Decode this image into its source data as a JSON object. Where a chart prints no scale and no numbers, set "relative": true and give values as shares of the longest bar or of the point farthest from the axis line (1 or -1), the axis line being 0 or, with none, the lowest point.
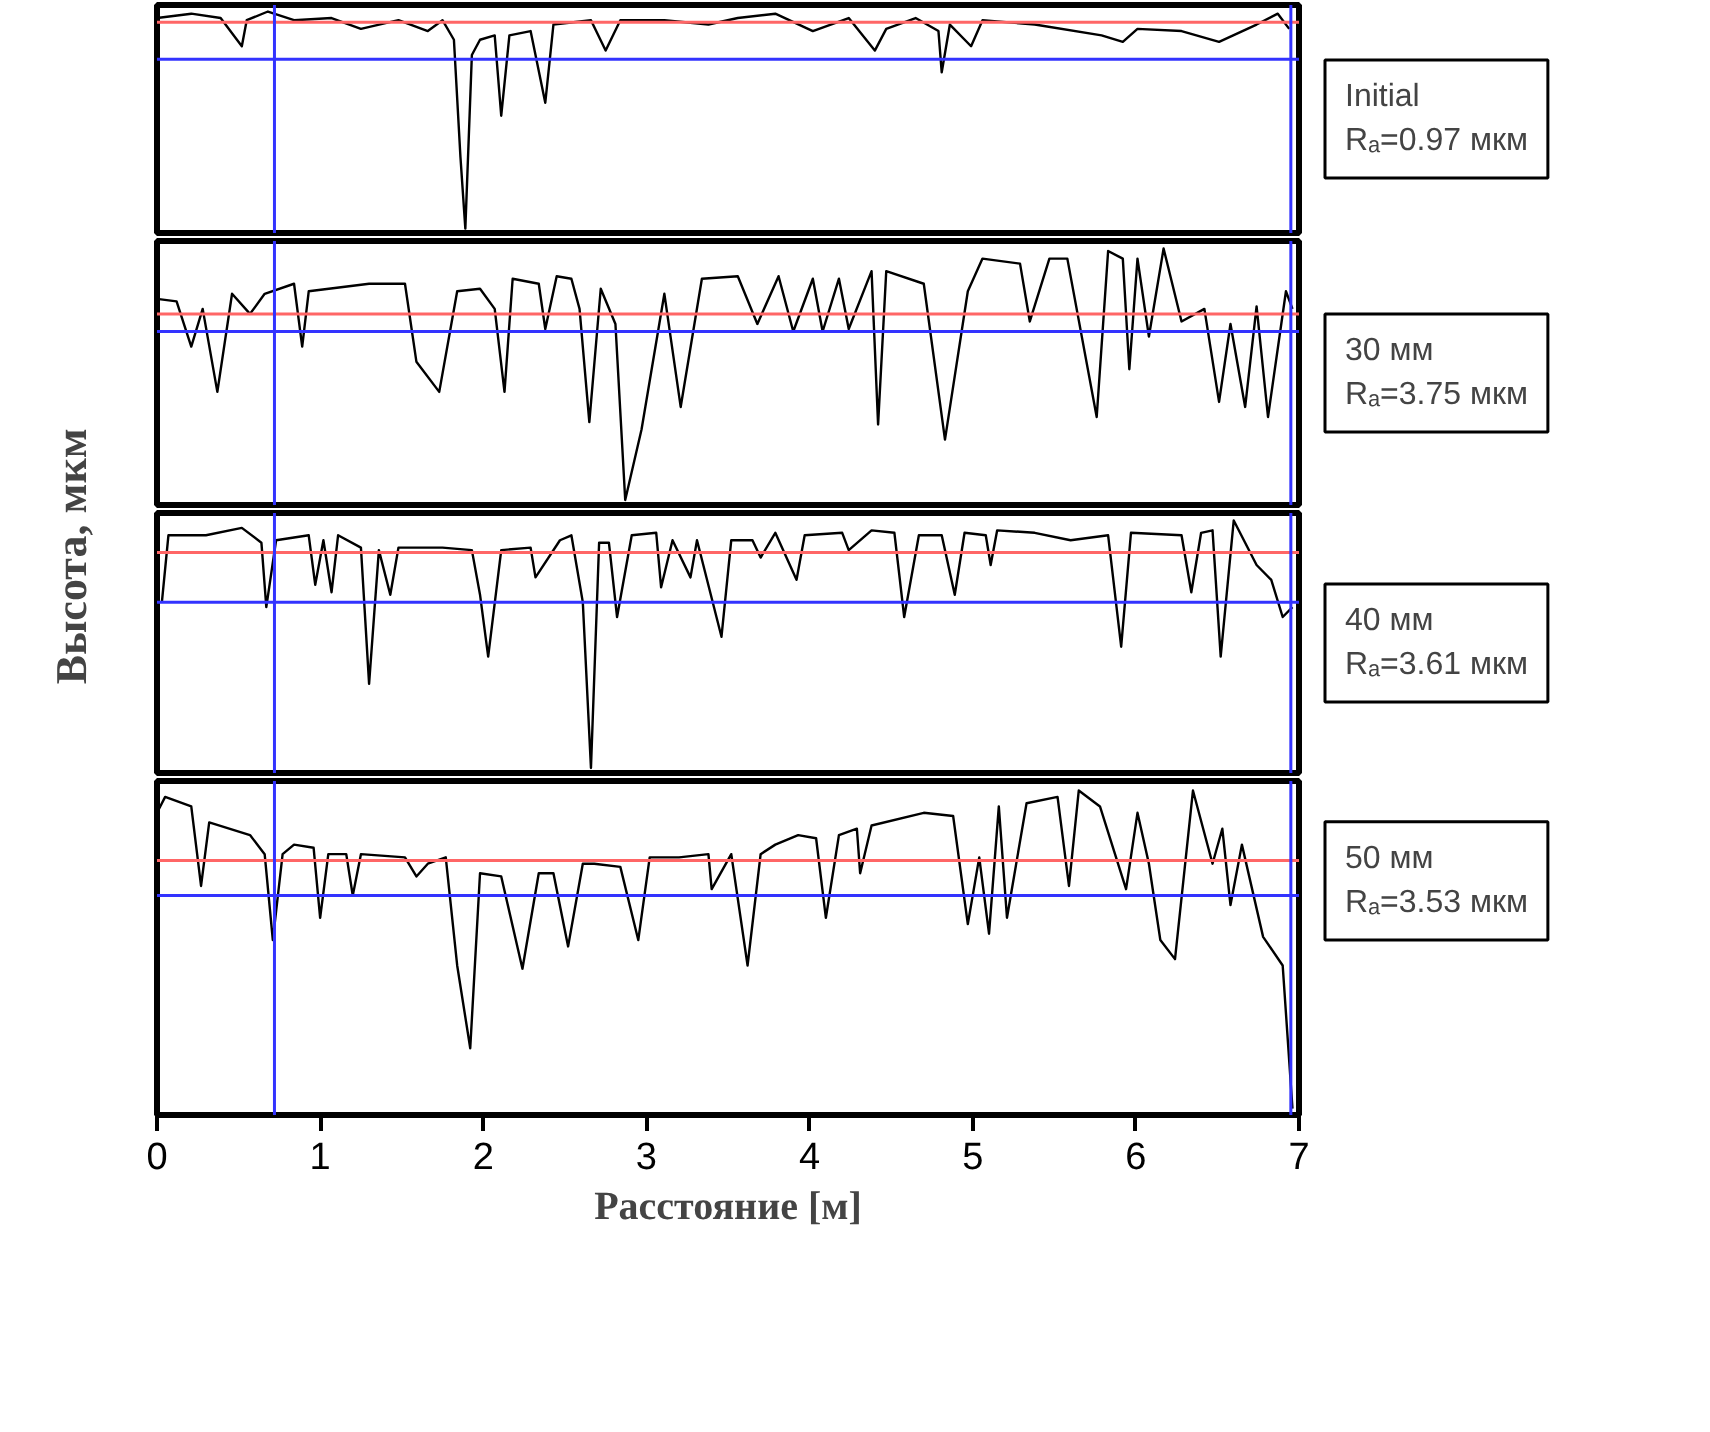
{
  "chart_data": [
    {
      "type": "line",
      "relative": true,
      "xlim": [
        0,
        7
      ],
      "tick_labels": false,
      "ylabel": "Высота, мкм",
      "annotations": [
        "Initial\nRₐ=0.97 мкм"
      ],
      "series": [
        {
          "color": "#000000",
          "x": [
            0.0,
            0.21,
            0.39,
            0.52,
            0.55,
            0.68,
            0.84,
            1.07,
            1.25,
            1.48,
            1.66,
            1.75,
            1.82,
            1.86,
            1.89,
            1.93,
            1.98,
            2.07,
            2.11,
            2.16,
            2.29,
            2.38,
            2.43,
            2.66,
            2.75,
            2.84,
            3.11,
            3.38,
            3.56,
            3.79,
            4.02,
            4.24,
            4.4,
            4.47,
            4.65,
            4.79,
            4.81,
            4.86,
            4.99,
            5.06,
            5.38,
            5.79,
            5.92,
            6.01,
            6.28,
            6.51,
            6.74,
            6.87,
            6.94
          ],
          "values": [
            0.97,
            0.99,
            0.97,
            0.84,
            0.96,
            1.0,
            0.96,
            0.97,
            0.92,
            0.96,
            0.91,
            0.96,
            0.87,
            0.33,
            0.0,
            0.8,
            0.87,
            0.89,
            0.52,
            0.89,
            0.91,
            0.58,
            0.94,
            0.96,
            0.82,
            0.96,
            0.96,
            0.94,
            0.97,
            0.99,
            0.91,
            0.97,
            0.82,
            0.92,
            0.97,
            0.91,
            0.72,
            0.94,
            0.84,
            0.96,
            0.94,
            0.89,
            0.86,
            0.92,
            0.91,
            0.86,
            0.94,
            0.99,
            0.92
          ]
        }
      ],
      "ref_lines": [
        {
          "axis": "y",
          "value": 0.95,
          "color": "#ff6666"
        },
        {
          "axis": "y",
          "value": 0.78,
          "color": "#3333ff"
        },
        {
          "axis": "x",
          "value": 0.72,
          "color": "#3333ff"
        },
        {
          "axis": "x",
          "value": 6.95,
          "color": "#3333ff"
        }
      ]
    },
    {
      "type": "line",
      "relative": true,
      "xlim": [
        0,
        7
      ],
      "tick_labels": false,
      "annotations": [
        "30 мм\nRₐ=3.75 мкм"
      ],
      "series": [
        {
          "color": "#000000",
          "x": [
            0.0,
            0.12,
            0.21,
            0.28,
            0.37,
            0.46,
            0.57,
            0.66,
            0.84,
            0.89,
            0.93,
            1.3,
            1.52,
            1.59,
            1.73,
            1.84,
            1.98,
            2.07,
            2.13,
            2.18,
            2.34,
            2.38,
            2.45,
            2.54,
            2.59,
            2.65,
            2.72,
            2.81,
            2.87,
            2.97,
            3.11,
            3.21,
            3.34,
            3.56,
            3.68,
            3.81,
            3.9,
            4.02,
            4.08,
            4.18,
            4.24,
            4.38,
            4.42,
            4.47,
            4.7,
            4.83,
            4.97,
            5.06,
            5.29,
            5.35,
            5.47,
            5.58,
            5.76,
            5.83,
            5.92,
            5.96,
            6.01,
            6.08,
            6.17,
            6.28,
            6.42,
            6.51,
            6.58,
            6.67,
            6.74,
            6.81,
            6.92,
            6.96
          ],
          "values": [
            0.8,
            0.79,
            0.61,
            0.76,
            0.43,
            0.82,
            0.74,
            0.82,
            0.86,
            0.61,
            0.83,
            0.86,
            0.86,
            0.55,
            0.43,
            0.83,
            0.84,
            0.76,
            0.43,
            0.88,
            0.86,
            0.68,
            0.89,
            0.88,
            0.76,
            0.31,
            0.84,
            0.7,
            0.0,
            0.28,
            0.82,
            0.37,
            0.88,
            0.89,
            0.7,
            0.89,
            0.67,
            0.88,
            0.67,
            0.88,
            0.68,
            0.91,
            0.3,
            0.91,
            0.86,
            0.24,
            0.83,
            0.96,
            0.94,
            0.71,
            0.96,
            0.96,
            0.33,
            0.99,
            0.96,
            0.52,
            0.96,
            0.65,
            1.0,
            0.71,
            0.76,
            0.39,
            0.7,
            0.37,
            0.77,
            0.33,
            0.83,
            0.76
          ]
        }
      ],
      "ref_lines": [
        {
          "axis": "y",
          "value": 0.74,
          "color": "#ff6666"
        },
        {
          "axis": "y",
          "value": 0.67,
          "color": "#3333ff"
        },
        {
          "axis": "x",
          "value": 0.72,
          "color": "#3333ff"
        },
        {
          "axis": "x",
          "value": 6.95,
          "color": "#3333ff"
        }
      ]
    },
    {
      "type": "line",
      "relative": true,
      "xlim": [
        0,
        7
      ],
      "tick_labels": false,
      "annotations": [
        "40 мм\nRₐ=3.61 мкм"
      ],
      "series": [
        {
          "color": "#000000",
          "x": [
            0.03,
            0.07,
            0.3,
            0.52,
            0.64,
            0.67,
            0.73,
            0.93,
            0.97,
            1.02,
            1.07,
            1.11,
            1.25,
            1.3,
            1.36,
            1.43,
            1.48,
            1.75,
            1.93,
            1.98,
            2.03,
            2.11,
            2.29,
            2.32,
            2.47,
            2.54,
            2.61,
            2.66,
            2.71,
            2.77,
            2.82,
            2.91,
            3.06,
            3.09,
            3.16,
            3.27,
            3.31,
            3.46,
            3.52,
            3.65,
            3.7,
            3.79,
            3.92,
            3.97,
            4.2,
            4.24,
            4.38,
            4.52,
            4.58,
            4.67,
            4.81,
            4.89,
            4.95,
            5.08,
            5.11,
            5.15,
            5.38,
            5.6,
            5.83,
            5.91,
            5.97,
            6.28,
            6.34,
            6.4,
            6.47,
            6.52,
            6.6,
            6.74,
            6.83,
            6.9,
            6.96
          ],
          "values": [
            0.67,
            0.94,
            0.94,
            0.97,
            0.91,
            0.65,
            0.92,
            0.94,
            0.74,
            0.92,
            0.71,
            0.94,
            0.89,
            0.34,
            0.88,
            0.7,
            0.89,
            0.89,
            0.88,
            0.7,
            0.45,
            0.88,
            0.89,
            0.77,
            0.92,
            0.94,
            0.67,
            0.0,
            0.91,
            0.91,
            0.61,
            0.94,
            0.95,
            0.73,
            0.92,
            0.77,
            0.92,
            0.53,
            0.92,
            0.92,
            0.85,
            0.95,
            0.76,
            0.94,
            0.95,
            0.88,
            0.96,
            0.95,
            0.61,
            0.94,
            0.94,
            0.7,
            0.95,
            0.94,
            0.82,
            0.96,
            0.95,
            0.92,
            0.94,
            0.49,
            0.95,
            0.94,
            0.71,
            0.95,
            0.96,
            0.45,
            1.0,
            0.82,
            0.76,
            0.61,
            0.65
          ]
        }
      ],
      "ref_lines": [
        {
          "axis": "y",
          "value": 0.87,
          "color": "#ff6666"
        },
        {
          "axis": "y",
          "value": 0.67,
          "color": "#3333ff"
        },
        {
          "axis": "x",
          "value": 0.72,
          "color": "#3333ff"
        },
        {
          "axis": "x",
          "value": 6.95,
          "color": "#3333ff"
        }
      ]
    },
    {
      "type": "line",
      "relative": true,
      "xlim": [
        0,
        7
      ],
      "xticks": [
        0,
        1,
        2,
        3,
        4,
        5,
        6,
        7
      ],
      "tick_labels": "x",
      "xlabel": "Расстояние [м]",
      "annotations": [
        "50 мм\nRₐ=3.53 мкм"
      ],
      "series": [
        {
          "color": "#000000",
          "x": [
            0.0,
            0.05,
            0.21,
            0.27,
            0.32,
            0.57,
            0.66,
            0.71,
            0.77,
            0.84,
            0.96,
            1.0,
            1.05,
            1.16,
            1.2,
            1.25,
            1.52,
            1.59,
            1.66,
            1.77,
            1.84,
            1.92,
            1.98,
            2.11,
            2.24,
            2.34,
            2.43,
            2.52,
            2.61,
            2.68,
            2.84,
            2.95,
            3.02,
            3.2,
            3.38,
            3.4,
            3.52,
            3.62,
            3.7,
            3.79,
            3.93,
            4.04,
            4.1,
            4.18,
            4.29,
            4.31,
            4.38,
            4.7,
            4.88,
            4.97,
            5.04,
            5.1,
            5.16,
            5.21,
            5.33,
            5.52,
            5.59,
            5.65,
            5.78,
            5.94,
            6.01,
            6.08,
            6.15,
            6.24,
            6.35,
            6.47,
            6.53,
            6.58,
            6.65,
            6.78,
            6.9,
            6.96
          ],
          "values": [
            0.93,
            0.98,
            0.95,
            0.7,
            0.9,
            0.86,
            0.8,
            0.53,
            0.8,
            0.83,
            0.82,
            0.6,
            0.8,
            0.8,
            0.67,
            0.8,
            0.79,
            0.73,
            0.77,
            0.79,
            0.45,
            0.19,
            0.74,
            0.73,
            0.44,
            0.74,
            0.74,
            0.51,
            0.77,
            0.77,
            0.76,
            0.53,
            0.79,
            0.79,
            0.8,
            0.69,
            0.8,
            0.45,
            0.8,
            0.83,
            0.86,
            0.85,
            0.6,
            0.86,
            0.88,
            0.74,
            0.89,
            0.93,
            0.92,
            0.58,
            0.79,
            0.55,
            0.95,
            0.6,
            0.96,
            0.98,
            0.7,
            1.0,
            0.95,
            0.69,
            0.93,
            0.77,
            0.53,
            0.47,
            1.0,
            0.77,
            0.88,
            0.64,
            0.83,
            0.54,
            0.45,
            0.0
          ]
        }
      ],
      "ref_lines": [
        {
          "axis": "y",
          "value": 0.78,
          "color": "#ff6666"
        },
        {
          "axis": "y",
          "value": 0.67,
          "color": "#3333ff"
        },
        {
          "axis": "x",
          "value": 0.72,
          "color": "#3333ff"
        },
        {
          "axis": "x",
          "value": 6.95,
          "color": "#3333ff"
        }
      ]
    }
  ]
}
